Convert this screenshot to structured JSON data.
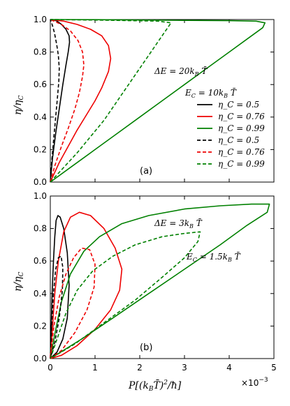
{
  "chart_data": [
    {
      "panel": "(a)",
      "type": "line",
      "xlim": [
        0,
        5
      ],
      "ylim": [
        0,
        1.0
      ],
      "x_ticks": [
        "0",
        "1",
        "2",
        "3",
        "4",
        "5"
      ],
      "y_ticks": [
        "0.0",
        "0.2",
        "0.4",
        "0.6",
        "0.8",
        "1.0"
      ],
      "ylabel": "η/η_C",
      "annotations": [
        "ΔE = 20k_B T̄",
        "E_C = 10k_B T̄"
      ],
      "legend_position": "right",
      "series": [
        {
          "name": "η_C = 0.5",
          "color": "#000000",
          "style": "solid",
          "points": [
            [
              0,
              0
            ],
            [
              0.05,
              0.15
            ],
            [
              0.12,
              0.3
            ],
            [
              0.2,
              0.45
            ],
            [
              0.28,
              0.6
            ],
            [
              0.35,
              0.72
            ],
            [
              0.4,
              0.8
            ],
            [
              0.43,
              0.86
            ],
            [
              0.42,
              0.9
            ],
            [
              0.35,
              0.94
            ],
            [
              0.25,
              0.97
            ],
            [
              0.15,
              0.99
            ],
            [
              0.05,
              1.0
            ],
            [
              0,
              1.0
            ]
          ]
        },
        {
          "name": "η_C = 0.76",
          "color": "#ee0000",
          "style": "solid",
          "points": [
            [
              0,
              0
            ],
            [
              0.2,
              0.12
            ],
            [
              0.4,
              0.22
            ],
            [
              0.6,
              0.32
            ],
            [
              0.8,
              0.41
            ],
            [
              1.0,
              0.5
            ],
            [
              1.15,
              0.58
            ],
            [
              1.3,
              0.68
            ],
            [
              1.35,
              0.76
            ],
            [
              1.3,
              0.84
            ],
            [
              1.15,
              0.9
            ],
            [
              0.9,
              0.94
            ],
            [
              0.6,
              0.97
            ],
            [
              0.3,
              0.99
            ],
            [
              0,
              1.0
            ]
          ]
        },
        {
          "name": "η_C = 0.99",
          "color": "#008000",
          "style": "solid",
          "points": [
            [
              0,
              0
            ],
            [
              0.5,
              0.1
            ],
            [
              1,
              0.2
            ],
            [
              1.5,
              0.3
            ],
            [
              2,
              0.4
            ],
            [
              2.5,
              0.5
            ],
            [
              3,
              0.6
            ],
            [
              3.5,
              0.7
            ],
            [
              4,
              0.8
            ],
            [
              4.5,
              0.9
            ],
            [
              4.75,
              0.95
            ],
            [
              4.8,
              0.98
            ],
            [
              4.6,
              0.99
            ],
            [
              4,
              0.993
            ],
            [
              3,
              0.995
            ],
            [
              2,
              0.997
            ],
            [
              1,
              0.999
            ],
            [
              0,
              1.0
            ]
          ]
        },
        {
          "name": "η_C = 0.5",
          "color": "#000000",
          "style": "dashed",
          "points": [
            [
              0,
              0
            ],
            [
              0.03,
              0.12
            ],
            [
              0.07,
              0.25
            ],
            [
              0.12,
              0.4
            ],
            [
              0.16,
              0.52
            ],
            [
              0.19,
              0.62
            ],
            [
              0.2,
              0.7
            ],
            [
              0.18,
              0.78
            ],
            [
              0.14,
              0.85
            ],
            [
              0.09,
              0.92
            ],
            [
              0.04,
              0.97
            ],
            [
              0,
              1.0
            ]
          ]
        },
        {
          "name": "η_C = 0.76",
          "color": "#ee0000",
          "style": "dashed",
          "points": [
            [
              0,
              0
            ],
            [
              0.1,
              0.1
            ],
            [
              0.25,
              0.22
            ],
            [
              0.4,
              0.33
            ],
            [
              0.55,
              0.45
            ],
            [
              0.65,
              0.55
            ],
            [
              0.72,
              0.65
            ],
            [
              0.75,
              0.72
            ],
            [
              0.72,
              0.8
            ],
            [
              0.62,
              0.87
            ],
            [
              0.45,
              0.93
            ],
            [
              0.25,
              0.97
            ],
            [
              0.08,
              0.99
            ],
            [
              0,
              1.0
            ]
          ]
        },
        {
          "name": "η_C = 0.99",
          "color": "#008000",
          "style": "dashed",
          "points": [
            [
              0,
              0
            ],
            [
              0.3,
              0.09
            ],
            [
              0.6,
              0.18
            ],
            [
              0.9,
              0.28
            ],
            [
              1.2,
              0.38
            ],
            [
              1.5,
              0.5
            ],
            [
              1.8,
              0.62
            ],
            [
              2.1,
              0.74
            ],
            [
              2.4,
              0.86
            ],
            [
              2.6,
              0.94
            ],
            [
              2.7,
              0.98
            ],
            [
              2.4,
              0.99
            ],
            [
              1.8,
              0.993
            ],
            [
              1.2,
              0.996
            ],
            [
              0.6,
              0.998
            ],
            [
              0,
              1.0
            ]
          ]
        }
      ]
    },
    {
      "panel": "(b)",
      "type": "line",
      "xlim": [
        0,
        5
      ],
      "ylim": [
        0,
        1.0
      ],
      "x_ticks": [
        "0",
        "1",
        "2",
        "3",
        "4",
        "5"
      ],
      "y_ticks": [
        "0.0",
        "0.2",
        "0.4",
        "0.6",
        "0.8",
        "1.0"
      ],
      "xlabel": "P[(k_B T̄)²/ħ]",
      "x_multiplier": "×10⁻³",
      "ylabel": "η/η_C",
      "annotations": [
        "ΔE = 3k_B T̄",
        "E_C = 1.5k_B T̄"
      ],
      "series": [
        {
          "name": "η_C = 0.5",
          "color": "#000000",
          "style": "solid",
          "points": [
            [
              0,
              0
            ],
            [
              0.02,
              0.2
            ],
            [
              0.04,
              0.4
            ],
            [
              0.07,
              0.6
            ],
            [
              0.1,
              0.75
            ],
            [
              0.13,
              0.85
            ],
            [
              0.17,
              0.88
            ],
            [
              0.22,
              0.87
            ],
            [
              0.3,
              0.8
            ],
            [
              0.38,
              0.65
            ],
            [
              0.42,
              0.45
            ],
            [
              0.38,
              0.25
            ],
            [
              0.28,
              0.12
            ],
            [
              0.15,
              0.04
            ],
            [
              0,
              0
            ]
          ]
        },
        {
          "name": "η_C = 0.76",
          "color": "#ee0000",
          "style": "solid",
          "points": [
            [
              0,
              0
            ],
            [
              0.05,
              0.2
            ],
            [
              0.1,
              0.4
            ],
            [
              0.18,
              0.6
            ],
            [
              0.3,
              0.78
            ],
            [
              0.45,
              0.87
            ],
            [
              0.65,
              0.9
            ],
            [
              0.9,
              0.88
            ],
            [
              1.2,
              0.8
            ],
            [
              1.45,
              0.68
            ],
            [
              1.6,
              0.55
            ],
            [
              1.55,
              0.42
            ],
            [
              1.35,
              0.3
            ],
            [
              1.0,
              0.18
            ],
            [
              0.6,
              0.08
            ],
            [
              0.25,
              0.02
            ],
            [
              0,
              0
            ]
          ]
        },
        {
          "name": "η_C = 0.99",
          "color": "#008000",
          "style": "solid",
          "points": [
            [
              0,
              0
            ],
            [
              0.1,
              0.15
            ],
            [
              0.25,
              0.35
            ],
            [
              0.45,
              0.52
            ],
            [
              0.75,
              0.66
            ],
            [
              1.1,
              0.75
            ],
            [
              1.6,
              0.83
            ],
            [
              2.2,
              0.88
            ],
            [
              3,
              0.92
            ],
            [
              3.8,
              0.94
            ],
            [
              4.5,
              0.95
            ],
            [
              4.9,
              0.95
            ],
            [
              4.85,
              0.9
            ],
            [
              4.4,
              0.82
            ],
            [
              3.8,
              0.7
            ],
            [
              3,
              0.55
            ],
            [
              2.2,
              0.4
            ],
            [
              1.4,
              0.25
            ],
            [
              0.7,
              0.12
            ],
            [
              0,
              0
            ]
          ]
        },
        {
          "name": "η_C = 0.5",
          "color": "#000000",
          "style": "dashed",
          "points": [
            [
              0,
              0
            ],
            [
              0.03,
              0.2
            ],
            [
              0.07,
              0.4
            ],
            [
              0.12,
              0.55
            ],
            [
              0.18,
              0.62
            ],
            [
              0.24,
              0.63
            ],
            [
              0.28,
              0.56
            ],
            [
              0.27,
              0.42
            ],
            [
              0.2,
              0.25
            ],
            [
              0.1,
              0.1
            ],
            [
              0,
              0
            ]
          ]
        },
        {
          "name": "η_C = 0.76",
          "color": "#ee0000",
          "style": "dashed",
          "points": [
            [
              0,
              0
            ],
            [
              0.08,
              0.2
            ],
            [
              0.2,
              0.38
            ],
            [
              0.35,
              0.52
            ],
            [
              0.52,
              0.62
            ],
            [
              0.7,
              0.68
            ],
            [
              0.88,
              0.67
            ],
            [
              1.0,
              0.58
            ],
            [
              0.98,
              0.44
            ],
            [
              0.82,
              0.3
            ],
            [
              0.55,
              0.16
            ],
            [
              0.25,
              0.05
            ],
            [
              0,
              0
            ]
          ]
        },
        {
          "name": "η_C = 0.99",
          "color": "#008000",
          "style": "dashed",
          "points": [
            [
              0,
              0
            ],
            [
              0.15,
              0.12
            ],
            [
              0.35,
              0.28
            ],
            [
              0.6,
              0.42
            ],
            [
              0.95,
              0.54
            ],
            [
              1.4,
              0.63
            ],
            [
              1.9,
              0.7
            ],
            [
              2.5,
              0.75
            ],
            [
              3.0,
              0.77
            ],
            [
              3.35,
              0.78
            ],
            [
              3.3,
              0.72
            ],
            [
              3.0,
              0.62
            ],
            [
              2.5,
              0.5
            ],
            [
              1.9,
              0.36
            ],
            [
              1.2,
              0.22
            ],
            [
              0.55,
              0.09
            ],
            [
              0,
              0
            ]
          ]
        }
      ]
    }
  ],
  "labels": {
    "panel_a": "(a)",
    "panel_b": "(b)",
    "ylabel": "η/η",
    "ylabel_sub": "C",
    "xlabel_main": "P[(k",
    "xlabel_mid": "B",
    "xlabel_T": "T̄)",
    "xlabel_exp": "2",
    "xlabel_tail": "/ħ]",
    "multiplier": "×10",
    "multiplier_exp": "−3"
  }
}
